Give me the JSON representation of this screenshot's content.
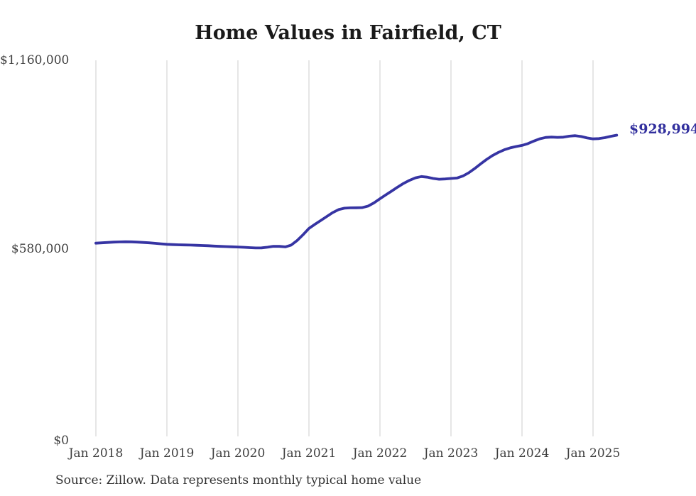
{
  "title": "Home Values in Fairfield, CT",
  "source_note": "Source: Zillow. Data represents monthly typical home value",
  "end_label": "$928,994",
  "colors": {
    "line": "#3634a3",
    "end_label": "#32309e",
    "grid": "#cccccc",
    "axis_text": "#3f3f3f",
    "title_text": "#1a1a1a",
    "background": "#ffffff"
  },
  "chart_data": {
    "type": "line",
    "title": "Home Values in Fairfield, CT",
    "xlabel": "",
    "ylabel": "",
    "grid": "vertical-only",
    "legend": "none",
    "x_axis": {
      "start": "2018-01",
      "end": "2025-05",
      "interval": "monthly",
      "tick_labels": [
        "Jan 2018",
        "Jan 2019",
        "Jan 2020",
        "Jan 2021",
        "Jan 2022",
        "Jan 2023",
        "Jan 2024",
        "Jan 2025"
      ],
      "tick_month_indices": [
        0,
        12,
        24,
        36,
        48,
        60,
        72,
        84
      ]
    },
    "y_axis": {
      "range": [
        0,
        1160000
      ],
      "tick_values": [
        0,
        580000,
        1160000
      ],
      "tick_labels": [
        "$0",
        "$580,000",
        "$1,160,000"
      ]
    },
    "latest_value": 928994,
    "latest_value_label": "$928,994",
    "series": [
      {
        "name": "Typical home value",
        "values": [
          596000,
          597000,
          598200,
          599200,
          600000,
          600400,
          600100,
          599200,
          598100,
          597000,
          595600,
          594000,
          592500,
          591600,
          591000,
          590400,
          590000,
          589400,
          588800,
          588000,
          587000,
          586200,
          585400,
          584800,
          584200,
          583200,
          582200,
          581400,
          581600,
          583600,
          586400,
          586200,
          584600,
          590000,
          604000,
          622000,
          641500,
          654000,
          666000,
          678000,
          690000,
          699500,
          703800,
          705000,
          705200,
          705600,
          710500,
          720500,
          733000,
          745000,
          757000,
          769000,
          780500,
          790000,
          797500,
          801500,
          799500,
          795500,
          793200,
          794000,
          795500,
          797000,
          803000,
          813000,
          826000,
          840500,
          854000,
          866000,
          876000,
          884000,
          890000,
          894000,
          897500,
          903000,
          911000,
          918000,
          922000,
          923200,
          922400,
          923000,
          926000,
          927500,
          925000,
          920500,
          917800,
          918500,
          921500,
          925500,
          928994
        ]
      }
    ]
  }
}
